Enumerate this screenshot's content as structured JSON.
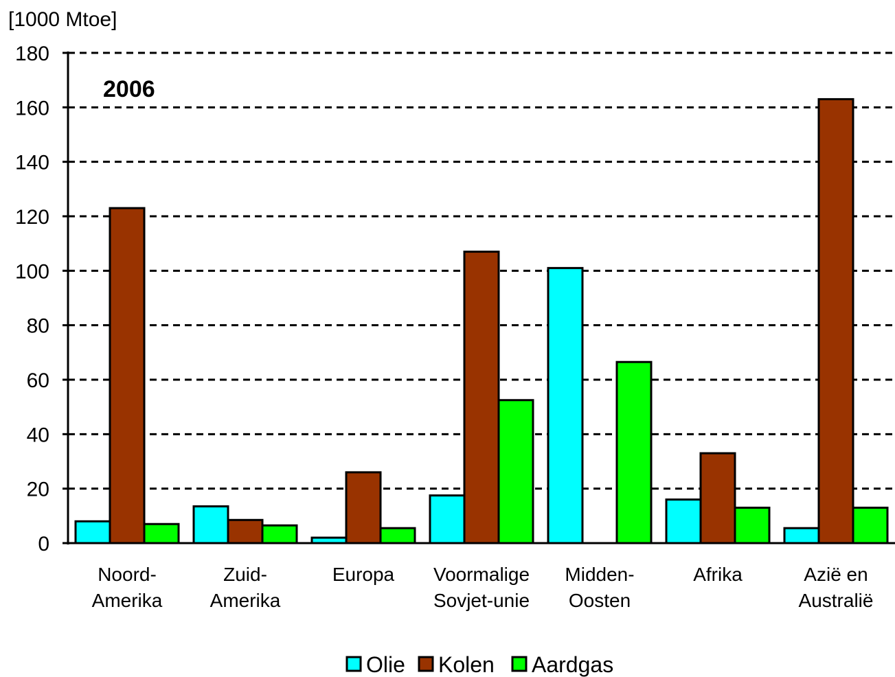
{
  "chart_data": {
    "type": "bar",
    "ylabel": "[1000 Mtoe]",
    "annotation": "2006",
    "ylim": [
      0,
      180
    ],
    "yticks": [
      0,
      20,
      40,
      60,
      80,
      100,
      120,
      140,
      160,
      180
    ],
    "grid": true,
    "legend_position": "bottom",
    "categories": [
      [
        "Noord-",
        "Amerika"
      ],
      [
        "Zuid-",
        "Amerika"
      ],
      [
        "Europa"
      ],
      [
        "Voormalige",
        "Sovjet-unie"
      ],
      [
        "Midden-",
        "Oosten"
      ],
      [
        "Afrika"
      ],
      [
        "Azië en",
        "Australië"
      ]
    ],
    "series": [
      {
        "name": "Olie",
        "color": "#00ffff",
        "values": [
          8,
          13.5,
          2,
          17.5,
          101,
          16,
          5.5
        ]
      },
      {
        "name": "Kolen",
        "color": "#993300",
        "values": [
          123,
          8.5,
          26,
          107,
          0,
          33,
          163
        ]
      },
      {
        "name": "Aardgas",
        "color": "#00ff00",
        "values": [
          7,
          6.5,
          5.5,
          52.5,
          66.5,
          13,
          13
        ]
      }
    ]
  }
}
